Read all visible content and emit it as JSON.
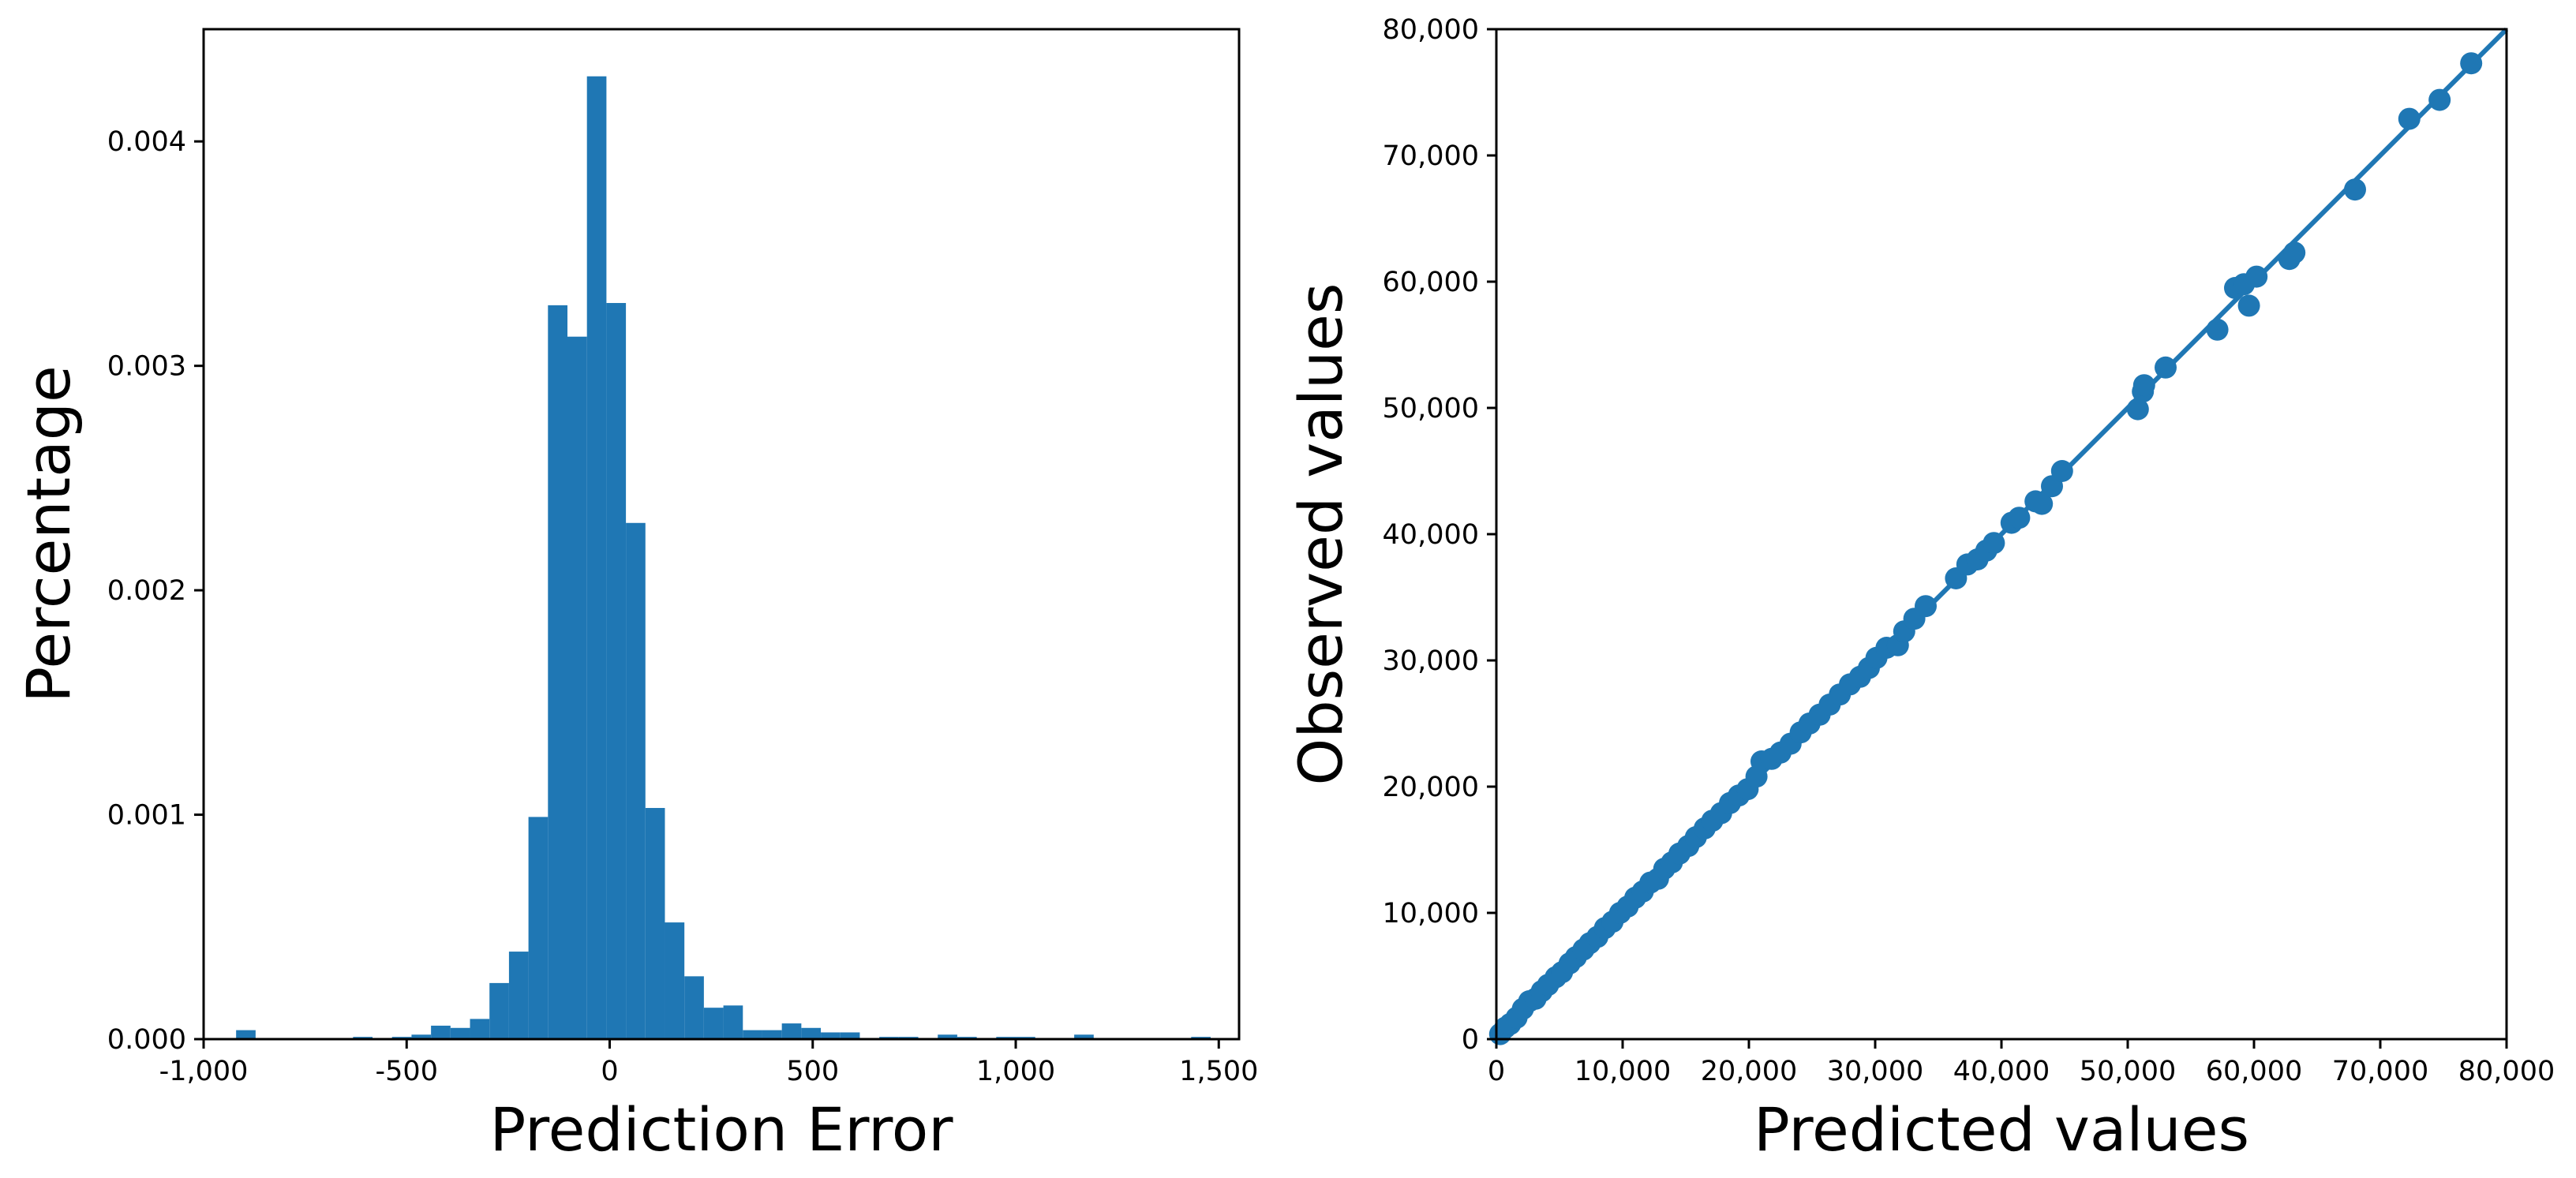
{
  "colors": {
    "series": "#1f77b4",
    "axes": "#000000",
    "background": "#ffffff"
  },
  "chart_data": [
    {
      "type": "bar",
      "subtype": "histogram",
      "xlabel": "Prediction Error",
      "ylabel": "Percentage",
      "xlim": [
        -1000,
        1550
      ],
      "ylim": [
        0,
        0.0045
      ],
      "grid": false,
      "xticks": [
        {
          "value": -1000,
          "label": "-1,000"
        },
        {
          "value": -500,
          "label": "-500"
        },
        {
          "value": 0,
          "label": "0"
        },
        {
          "value": 500,
          "label": "500"
        },
        {
          "value": 1000,
          "label": "1,000"
        },
        {
          "value": 1500,
          "label": "1,500"
        }
      ],
      "yticks": [
        {
          "value": 0,
          "label": "0.000"
        },
        {
          "value": 0.001,
          "label": "0.001"
        },
        {
          "value": 0.002,
          "label": "0.002"
        },
        {
          "value": 0.003,
          "label": "0.003"
        },
        {
          "value": 0.004,
          "label": "0.004"
        }
      ],
      "bin_width": 48,
      "bins": [
        {
          "x0": -920,
          "value": 4e-05
        },
        {
          "x0": -632,
          "value": 1e-05
        },
        {
          "x0": -536,
          "value": 1e-05
        },
        {
          "x0": -488,
          "value": 2e-05
        },
        {
          "x0": -440,
          "value": 6e-05
        },
        {
          "x0": -392,
          "value": 5e-05
        },
        {
          "x0": -344,
          "value": 9e-05
        },
        {
          "x0": -296,
          "value": 0.00025
        },
        {
          "x0": -248,
          "value": 0.00039
        },
        {
          "x0": -200,
          "value": 0.00099
        },
        {
          "x0": -152,
          "value": 0.00327
        },
        {
          "x0": -104,
          "value": 0.00313
        },
        {
          "x0": -56,
          "value": 0.00429
        },
        {
          "x0": -8,
          "value": 0.00328
        },
        {
          "x0": 40,
          "value": 0.0023
        },
        {
          "x0": 88,
          "value": 0.00103
        },
        {
          "x0": 136,
          "value": 0.00052
        },
        {
          "x0": 184,
          "value": 0.00028
        },
        {
          "x0": 232,
          "value": 0.00014
        },
        {
          "x0": 280,
          "value": 0.00015
        },
        {
          "x0": 328,
          "value": 4e-05
        },
        {
          "x0": 376,
          "value": 4e-05
        },
        {
          "x0": 424,
          "value": 7e-05
        },
        {
          "x0": 472,
          "value": 5e-05
        },
        {
          "x0": 520,
          "value": 3e-05
        },
        {
          "x0": 568,
          "value": 3e-05
        },
        {
          "x0": 664,
          "value": 1e-05
        },
        {
          "x0": 712,
          "value": 1e-05
        },
        {
          "x0": 808,
          "value": 2e-05
        },
        {
          "x0": 856,
          "value": 1e-05
        },
        {
          "x0": 952,
          "value": 1e-05
        },
        {
          "x0": 1000,
          "value": 1e-05
        },
        {
          "x0": 1144,
          "value": 2e-05
        },
        {
          "x0": 1432,
          "value": 1e-05
        }
      ]
    },
    {
      "type": "scatter",
      "xlabel": "Predicted values",
      "ylabel": "Observed values",
      "xlim": [
        0,
        80000
      ],
      "ylim": [
        0,
        80000
      ],
      "grid": false,
      "xticks": [
        {
          "value": 0,
          "label": "0"
        },
        {
          "value": 10000,
          "label": "10,000"
        },
        {
          "value": 20000,
          "label": "20,000"
        },
        {
          "value": 30000,
          "label": "30,000"
        },
        {
          "value": 40000,
          "label": "40,000"
        },
        {
          "value": 50000,
          "label": "50,000"
        },
        {
          "value": 60000,
          "label": "60,000"
        },
        {
          "value": 70000,
          "label": "70,000"
        },
        {
          "value": 80000,
          "label": "80,000"
        }
      ],
      "yticks": [
        {
          "value": 0,
          "label": "0"
        },
        {
          "value": 10000,
          "label": "10,000"
        },
        {
          "value": 20000,
          "label": "20,000"
        },
        {
          "value": 30000,
          "label": "30,000"
        },
        {
          "value": 40000,
          "label": "40,000"
        },
        {
          "value": 50000,
          "label": "50,000"
        },
        {
          "value": 60000,
          "label": "60,000"
        },
        {
          "value": 70000,
          "label": "70,000"
        },
        {
          "value": 80000,
          "label": "80,000"
        }
      ],
      "reference_line": {
        "x": [
          0,
          80000
        ],
        "y": [
          0,
          80000
        ]
      },
      "points": [
        {
          "x": 300,
          "y": 400
        },
        {
          "x": 700,
          "y": 900
        },
        {
          "x": 1100,
          "y": 1200
        },
        {
          "x": 1600,
          "y": 1700
        },
        {
          "x": 2100,
          "y": 2400
        },
        {
          "x": 2600,
          "y": 3000
        },
        {
          "x": 3100,
          "y": 3200
        },
        {
          "x": 3600,
          "y": 3800
        },
        {
          "x": 4100,
          "y": 4300
        },
        {
          "x": 4700,
          "y": 4900
        },
        {
          "x": 5200,
          "y": 5300
        },
        {
          "x": 5800,
          "y": 6000
        },
        {
          "x": 6300,
          "y": 6500
        },
        {
          "x": 6900,
          "y": 7100
        },
        {
          "x": 7400,
          "y": 7600
        },
        {
          "x": 8000,
          "y": 8100
        },
        {
          "x": 8600,
          "y": 8800
        },
        {
          "x": 9200,
          "y": 9300
        },
        {
          "x": 9800,
          "y": 10000
        },
        {
          "x": 10400,
          "y": 10500
        },
        {
          "x": 11000,
          "y": 11200
        },
        {
          "x": 11600,
          "y": 11700
        },
        {
          "x": 12200,
          "y": 12400
        },
        {
          "x": 12800,
          "y": 12700
        },
        {
          "x": 13300,
          "y": 13500
        },
        {
          "x": 13900,
          "y": 14000
        },
        {
          "x": 14500,
          "y": 14700
        },
        {
          "x": 15200,
          "y": 15300
        },
        {
          "x": 15800,
          "y": 16000
        },
        {
          "x": 16500,
          "y": 16700
        },
        {
          "x": 17100,
          "y": 17300
        },
        {
          "x": 17800,
          "y": 17900
        },
        {
          "x": 18500,
          "y": 18700
        },
        {
          "x": 19200,
          "y": 19300
        },
        {
          "x": 19900,
          "y": 19800
        },
        {
          "x": 20600,
          "y": 20800
        },
        {
          "x": 21000,
          "y": 22000
        },
        {
          "x": 21800,
          "y": 22200
        },
        {
          "x": 22500,
          "y": 22700
        },
        {
          "x": 23300,
          "y": 23400
        },
        {
          "x": 24100,
          "y": 24300
        },
        {
          "x": 24800,
          "y": 25000
        },
        {
          "x": 25600,
          "y": 25700
        },
        {
          "x": 26400,
          "y": 26500
        },
        {
          "x": 27200,
          "y": 27300
        },
        {
          "x": 28000,
          "y": 28100
        },
        {
          "x": 28800,
          "y": 28700
        },
        {
          "x": 29500,
          "y": 29400
        },
        {
          "x": 30100,
          "y": 30200
        },
        {
          "x": 30900,
          "y": 31000
        },
        {
          "x": 31800,
          "y": 31200
        },
        {
          "x": 32300,
          "y": 32300
        },
        {
          "x": 33100,
          "y": 33300
        },
        {
          "x": 34000,
          "y": 34300
        },
        {
          "x": 36400,
          "y": 36500
        },
        {
          "x": 37300,
          "y": 37600
        },
        {
          "x": 38100,
          "y": 38000
        },
        {
          "x": 38800,
          "y": 38700
        },
        {
          "x": 39400,
          "y": 39300
        },
        {
          "x": 40800,
          "y": 40900
        },
        {
          "x": 41400,
          "y": 41300
        },
        {
          "x": 42700,
          "y": 42600
        },
        {
          "x": 43200,
          "y": 42400
        },
        {
          "x": 44000,
          "y": 43800
        },
        {
          "x": 44800,
          "y": 45000
        },
        {
          "x": 50800,
          "y": 49900
        },
        {
          "x": 51200,
          "y": 51300
        },
        {
          "x": 51300,
          "y": 51800
        },
        {
          "x": 53000,
          "y": 53200
        },
        {
          "x": 57100,
          "y": 56200
        },
        {
          "x": 58500,
          "y": 59500
        },
        {
          "x": 59200,
          "y": 59800
        },
        {
          "x": 59600,
          "y": 58100
        },
        {
          "x": 60200,
          "y": 60400
        },
        {
          "x": 62800,
          "y": 61800
        },
        {
          "x": 63200,
          "y": 62300
        },
        {
          "x": 68000,
          "y": 67300
        },
        {
          "x": 72300,
          "y": 72900
        },
        {
          "x": 74700,
          "y": 74400
        },
        {
          "x": 77200,
          "y": 77300
        }
      ]
    }
  ]
}
